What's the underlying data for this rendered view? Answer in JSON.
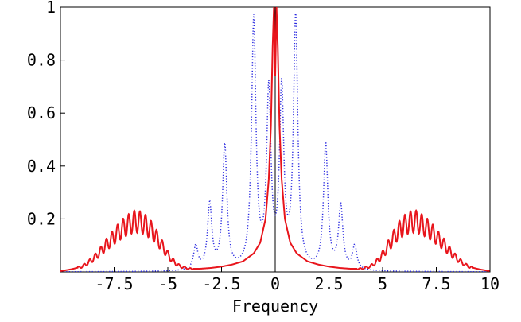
{
  "chart_data": {
    "type": "line",
    "title": "",
    "xlabel": "Frequency",
    "ylabel": "",
    "xlim": [
      -10,
      10
    ],
    "ylim": [
      0,
      1
    ],
    "x_ticks": [
      -7.5,
      -5,
      -2.5,
      0,
      2.5,
      5,
      7.5,
      10
    ],
    "x_tick_labels": [
      "-7.5",
      "-5",
      "-2.5",
      "0",
      "2.5",
      "5",
      "7.5",
      "10"
    ],
    "y_ticks": [
      0.2,
      0.4,
      0.6,
      0.8,
      1
    ],
    "y_tick_labels": [
      "0.2",
      "0.4",
      "0.6",
      "0.8",
      "1"
    ],
    "grid": false,
    "legend": "none",
    "series": [
      {
        "style": "solid",
        "color": "#e8151c",
        "x": [
          -10,
          -9.5,
          -9,
          -8.7,
          -8.4,
          -8.1,
          -7.9,
          -7.6,
          -7.3,
          -7.0,
          -6.8,
          -6.6,
          -6.4,
          -6.2,
          -6.0,
          -5.8,
          -5.6,
          -5.4,
          -5.2,
          -5.0,
          -4.8,
          -4.6,
          -4.4,
          -4.2,
          -4.0,
          -3.5,
          -3.0,
          -2.5,
          -2.0,
          -1.5,
          -1.0,
          -0.7,
          -0.45,
          -0.3,
          -0.2,
          -0.12,
          -0.06,
          0,
          0.06,
          0.12,
          0.2,
          0.3,
          0.45,
          0.7,
          1.0,
          1.5,
          2.0,
          2.5,
          3.0,
          3.5,
          4.0,
          4.2,
          4.4,
          4.6,
          4.8,
          5.0,
          5.2,
          5.4,
          5.6,
          5.8,
          6.0,
          6.2,
          6.4,
          6.6,
          6.8,
          7.0,
          7.3,
          7.6,
          7.9,
          8.1,
          8.4,
          8.7,
          9,
          9.5,
          10
        ],
        "y": [
          0.003,
          0.01,
          0.02,
          0.035,
          0.055,
          0.08,
          0.1,
          0.125,
          0.15,
          0.17,
          0.18,
          0.19,
          0.19,
          0.185,
          0.175,
          0.16,
          0.14,
          0.115,
          0.09,
          0.065,
          0.045,
          0.03,
          0.02,
          0.016,
          0.012,
          0.012,
          0.015,
          0.02,
          0.028,
          0.04,
          0.07,
          0.11,
          0.2,
          0.35,
          0.55,
          0.85,
          1.0,
          0.74,
          1.0,
          0.85,
          0.55,
          0.35,
          0.2,
          0.11,
          0.07,
          0.04,
          0.028,
          0.02,
          0.015,
          0.012,
          0.012,
          0.016,
          0.02,
          0.03,
          0.045,
          0.065,
          0.09,
          0.115,
          0.14,
          0.16,
          0.175,
          0.185,
          0.19,
          0.19,
          0.18,
          0.17,
          0.15,
          0.125,
          0.1,
          0.08,
          0.055,
          0.035,
          0.02,
          0.01,
          0.003
        ]
      },
      {
        "style": "dotted",
        "color": "#2a2ae0",
        "peaks": [
          {
            "x": -3.7,
            "y": 0.09
          },
          {
            "x": -3.05,
            "y": 0.245
          },
          {
            "x": -2.35,
            "y": 0.47
          },
          {
            "x": -1.0,
            "y": 0.94
          },
          {
            "x": -0.3,
            "y": 0.66
          },
          {
            "x": 0.3,
            "y": 0.665
          },
          {
            "x": 0.95,
            "y": 0.945
          },
          {
            "x": 2.35,
            "y": 0.47
          },
          {
            "x": 3.05,
            "y": 0.24
          },
          {
            "x": 3.7,
            "y": 0.09
          }
        ]
      }
    ]
  }
}
